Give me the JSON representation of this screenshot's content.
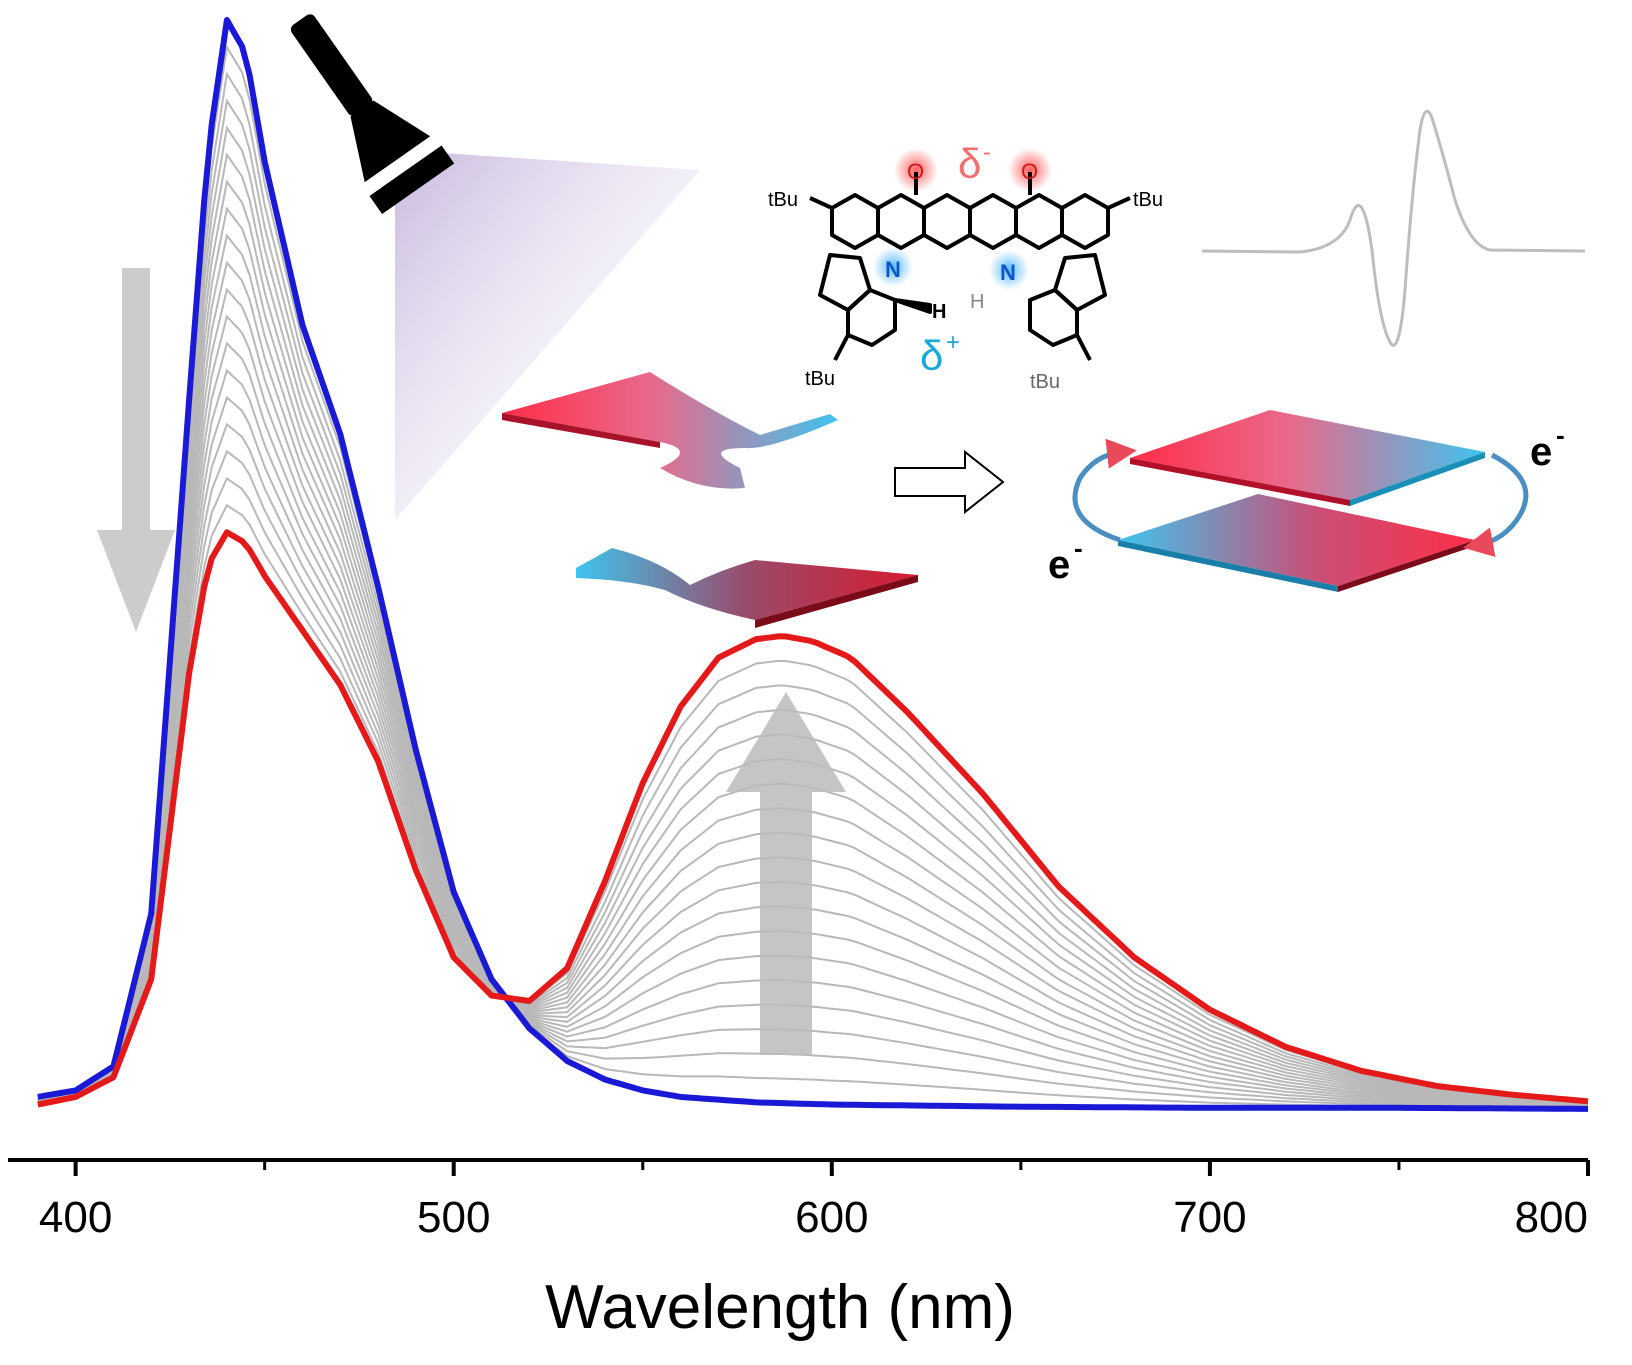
{
  "chart_data": {
    "type": "line",
    "xlabel": "Wavelength (nm)",
    "ylabel": "",
    "xlim": [
      380,
      800
    ],
    "ylim": [
      0,
      1.0
    ],
    "x_ticks": [
      "400",
      "500",
      "600",
      "700",
      "800"
    ],
    "x_tick_values": [
      400,
      500,
      600,
      700,
      800
    ],
    "x_minor_tick_values": [
      450,
      550,
      650,
      750
    ],
    "grid": false,
    "legend": "none",
    "series": [
      {
        "color": "#1a1ad6",
        "x": [
          390,
          400,
          410,
          420,
          430,
          435,
          440,
          445,
          450,
          460,
          470,
          480,
          490,
          500,
          510,
          520,
          530,
          540,
          550,
          560,
          580,
          600,
          650,
          700,
          750,
          800
        ],
        "y": [
          0.012,
          0.018,
          0.04,
          0.18,
          0.65,
          0.88,
          1.0,
          0.97,
          0.87,
          0.72,
          0.62,
          0.48,
          0.33,
          0.2,
          0.12,
          0.075,
          0.045,
          0.028,
          0.018,
          0.012,
          0.007,
          0.005,
          0.003,
          0.002,
          0.002,
          0.001
        ]
      },
      {
        "color": "#e41a1a",
        "x": [
          390,
          400,
          410,
          420,
          430,
          435,
          440,
          445,
          450,
          460,
          470,
          480,
          490,
          500,
          510,
          520,
          530,
          540,
          550,
          560,
          570,
          580,
          587,
          595,
          605,
          620,
          640,
          660,
          680,
          700,
          720,
          740,
          760,
          780,
          800
        ],
        "y": [
          0.005,
          0.012,
          0.03,
          0.12,
          0.4,
          0.5,
          0.53,
          0.52,
          0.49,
          0.44,
          0.39,
          0.32,
          0.22,
          0.14,
          0.105,
          0.1,
          0.13,
          0.21,
          0.3,
          0.37,
          0.415,
          0.432,
          0.435,
          0.43,
          0.415,
          0.365,
          0.29,
          0.205,
          0.14,
          0.092,
          0.058,
          0.036,
          0.022,
          0.014,
          0.008
        ]
      }
    ],
    "intermediate_curves": {
      "color": "#b8b8b8",
      "count": 18
    },
    "inset_labels": {
      "tBu": "tBu",
      "O": "O",
      "N": "N",
      "H": "H",
      "delta_minus": "δ",
      "delta_minus_sup": "-",
      "delta_plus": "δ",
      "delta_plus_sup": "+",
      "electron": "e",
      "electron_sup": "-"
    }
  }
}
